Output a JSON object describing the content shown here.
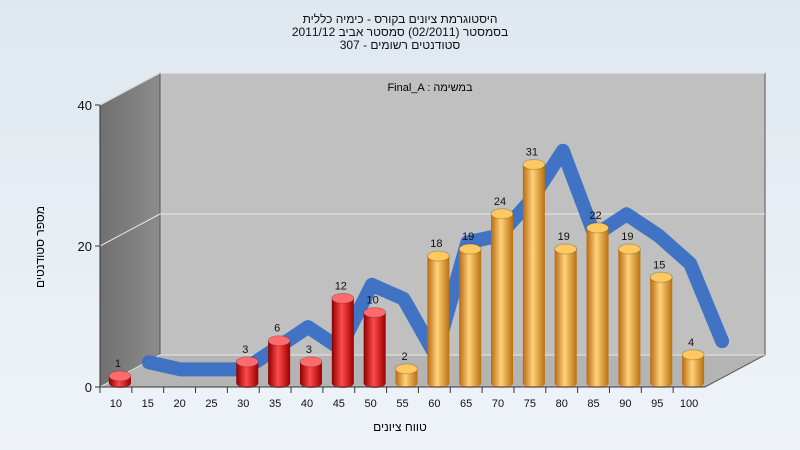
{
  "chart_data": {
    "type": "bar",
    "title_lines": [
      "היסטוגרמת ציונים בקורס - כימיה כללית",
      "בסמסטר  (02/2011)  סמסטר אביב 2011/12",
      "סטודנטים רשומים - 307"
    ],
    "annotation": "Final_A : במשימה",
    "xlabel": "טווח ציונים",
    "ylabel": "מספר סטודנטים",
    "x_ticks": [
      "10",
      "15",
      "20",
      "25",
      "30",
      "35",
      "40",
      "45",
      "50",
      "55",
      "60",
      "65",
      "70",
      "75",
      "80",
      "85",
      "90",
      "95",
      "100"
    ],
    "y_ticks": [
      "0",
      "20",
      "40"
    ],
    "ylim": [
      0,
      40
    ],
    "grid": true,
    "series": [
      {
        "name": "",
        "color": "#dd1111",
        "values": [
          1,
          0,
          0,
          0,
          3,
          6,
          3,
          12,
          10,
          0,
          0,
          0,
          0,
          0,
          0,
          0,
          0,
          0,
          0
        ]
      },
      {
        "name": "",
        "color": "#e8a23a",
        "values": [
          0,
          0,
          0,
          0,
          0,
          0,
          0,
          0,
          0,
          2,
          18,
          19,
          24,
          31,
          19,
          22,
          19,
          15,
          4
        ]
      }
    ],
    "line_color": "#3a6fc4"
  }
}
